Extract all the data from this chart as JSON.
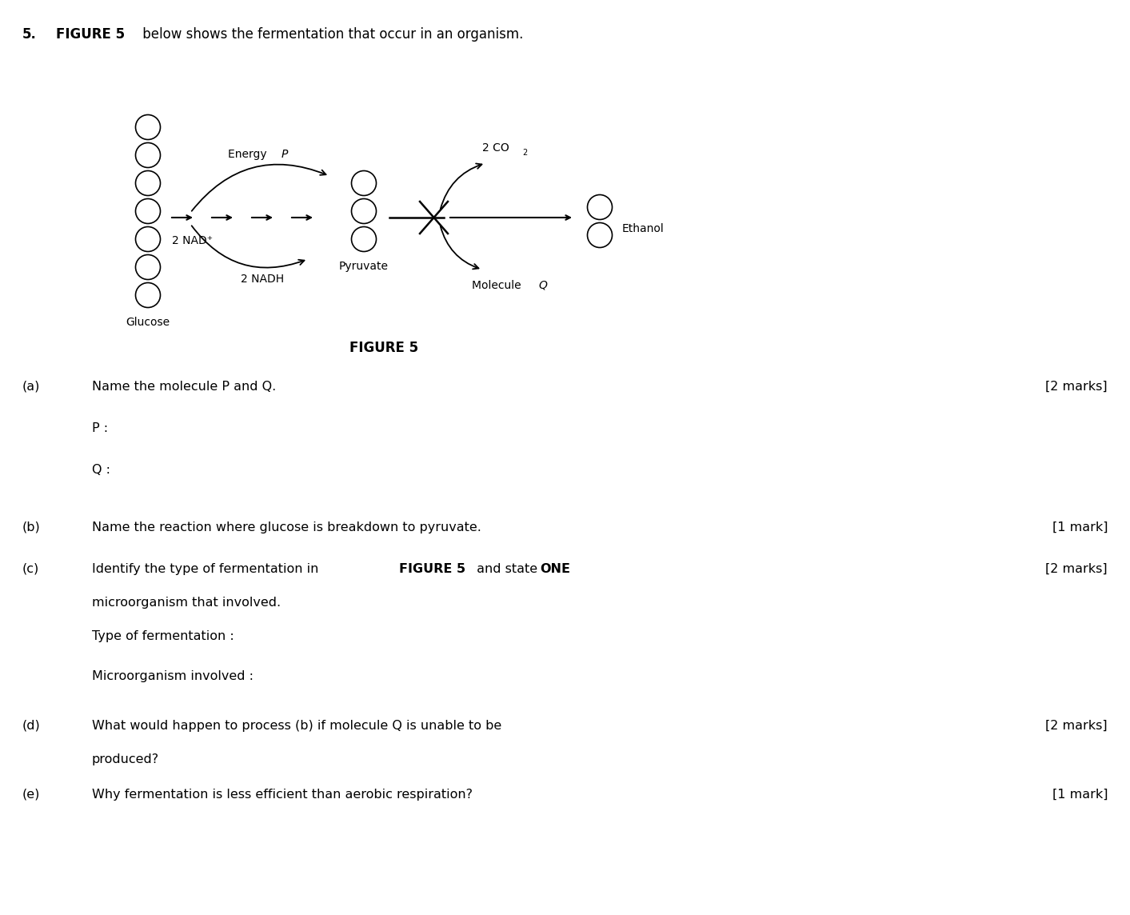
{
  "bg_color": "#ffffff",
  "title_number": "5.",
  "figure_label": "FIGURE 5",
  "diagram": {
    "glucose_circles": 7,
    "glucose_label": "Glucose",
    "pyruvate_circles": 3,
    "pyruvate_label": "Pyruvate",
    "ethanol_circles": 2,
    "ethanol_label": "Ethanol",
    "energy_label_normal": "Energy ",
    "energy_label_italic": "P",
    "nad_label": "2 NAD⁺",
    "nadh_label": "2 NADH",
    "co2_label_normal": "2 CO",
    "co2_subscript": "2",
    "mol_q_label_normal": "Molecule ",
    "mol_q_label_italic": "Q"
  },
  "q_fontsize": 11.5,
  "diagram_fontsize": 10,
  "title_fontsize": 12
}
